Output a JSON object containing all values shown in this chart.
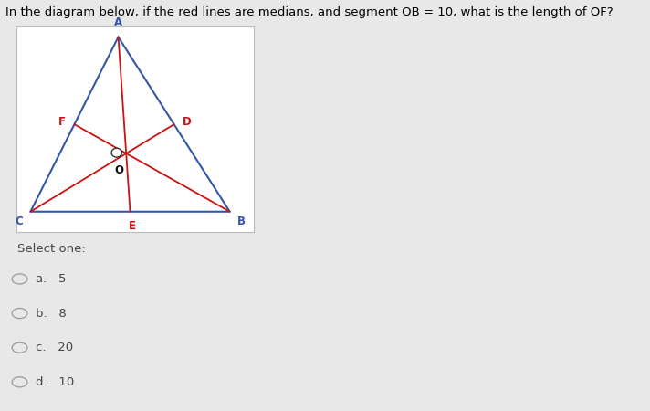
{
  "title": "In the diagram below, if the red lines are medians, and segment OB = 10, what is the length of OF?",
  "title_bg": "#d4f000",
  "title_fontsize": 9.5,
  "triangle_color": "#3355aa",
  "median_color": "#cc1111",
  "centroid_circle_color": "white",
  "centroid_circle_edge": "#333333",
  "label_fontsize": 8.5,
  "label_color_vertex": "#3355aa",
  "label_color_mid": "#cc1111",
  "label_color_O": "#111111",
  "select_one_text": "Select one:",
  "options": [
    "a.   5",
    "b.   8",
    "c.   20",
    "d.   10"
  ],
  "bg_color": "#e8e8e8",
  "diagram_bg": "#ffffff",
  "diagram_border": "#bbbbbb",
  "triangle_vertices": {
    "A": [
      0.43,
      0.95
    ],
    "C": [
      0.06,
      0.1
    ],
    "B": [
      0.9,
      0.1
    ]
  },
  "midpoints": {
    "D": [
      0.665,
      0.525
    ],
    "E": [
      0.48,
      0.1
    ],
    "F": [
      0.245,
      0.525
    ]
  },
  "centroid": [
    0.423,
    0.387
  ]
}
